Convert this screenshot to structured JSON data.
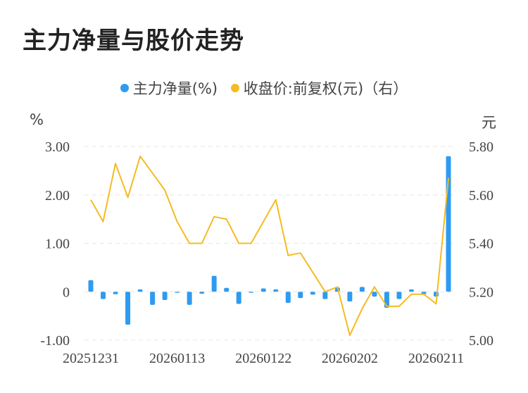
{
  "title": "主力净量与股价走势",
  "chart_data": {
    "type": "bar+line",
    "legend": {
      "placement": "top-center",
      "items": [
        {
          "label": "主力净量(%)",
          "color": "#2f9bf0"
        },
        {
          "label": "收盘价:前复权(元)（右）",
          "color": "#f5bb22"
        }
      ]
    },
    "left_unit": "%",
    "right_unit": "元",
    "left_ticks": [
      "3.00",
      "2.00",
      "1.00",
      "0",
      "-1.00"
    ],
    "right_ticks": [
      "5.80",
      "5.60",
      "5.40",
      "5.20",
      "5.00"
    ],
    "ylim_left": [
      -1.0,
      3.0
    ],
    "ylim_right": [
      5.0,
      5.8
    ],
    "x_tick_labels": [
      "20251231",
      "20260113",
      "20260122",
      "20260202",
      "20260211"
    ],
    "x_tick_indices": [
      0,
      7,
      14,
      21,
      28
    ],
    "grid": "horizontal-dashed",
    "series": [
      {
        "name": "主力净量(%)",
        "type": "bar",
        "axis": "left",
        "color": "#2f9bf0",
        "values": [
          0.24,
          -0.15,
          -0.05,
          -0.68,
          0.05,
          -0.27,
          -0.17,
          -0.02,
          -0.27,
          -0.04,
          0.33,
          0.08,
          -0.25,
          -0.02,
          0.07,
          0.05,
          -0.23,
          -0.13,
          -0.06,
          -0.15,
          0.09,
          -0.2,
          0.1,
          -0.1,
          -0.33,
          -0.15,
          0.05,
          -0.05,
          -0.1,
          2.8
        ]
      },
      {
        "name": "收盘价:前复权(元)（右）",
        "type": "line",
        "axis": "right",
        "color": "#f5bb22",
        "values": [
          5.58,
          5.49,
          5.73,
          5.59,
          5.76,
          5.69,
          5.62,
          5.49,
          5.4,
          5.4,
          5.51,
          5.5,
          5.4,
          5.4,
          5.49,
          5.58,
          5.35,
          5.36,
          5.28,
          5.2,
          5.22,
          5.02,
          5.13,
          5.22,
          5.14,
          5.14,
          5.19,
          5.19,
          5.15,
          5.67
        ]
      }
    ]
  }
}
